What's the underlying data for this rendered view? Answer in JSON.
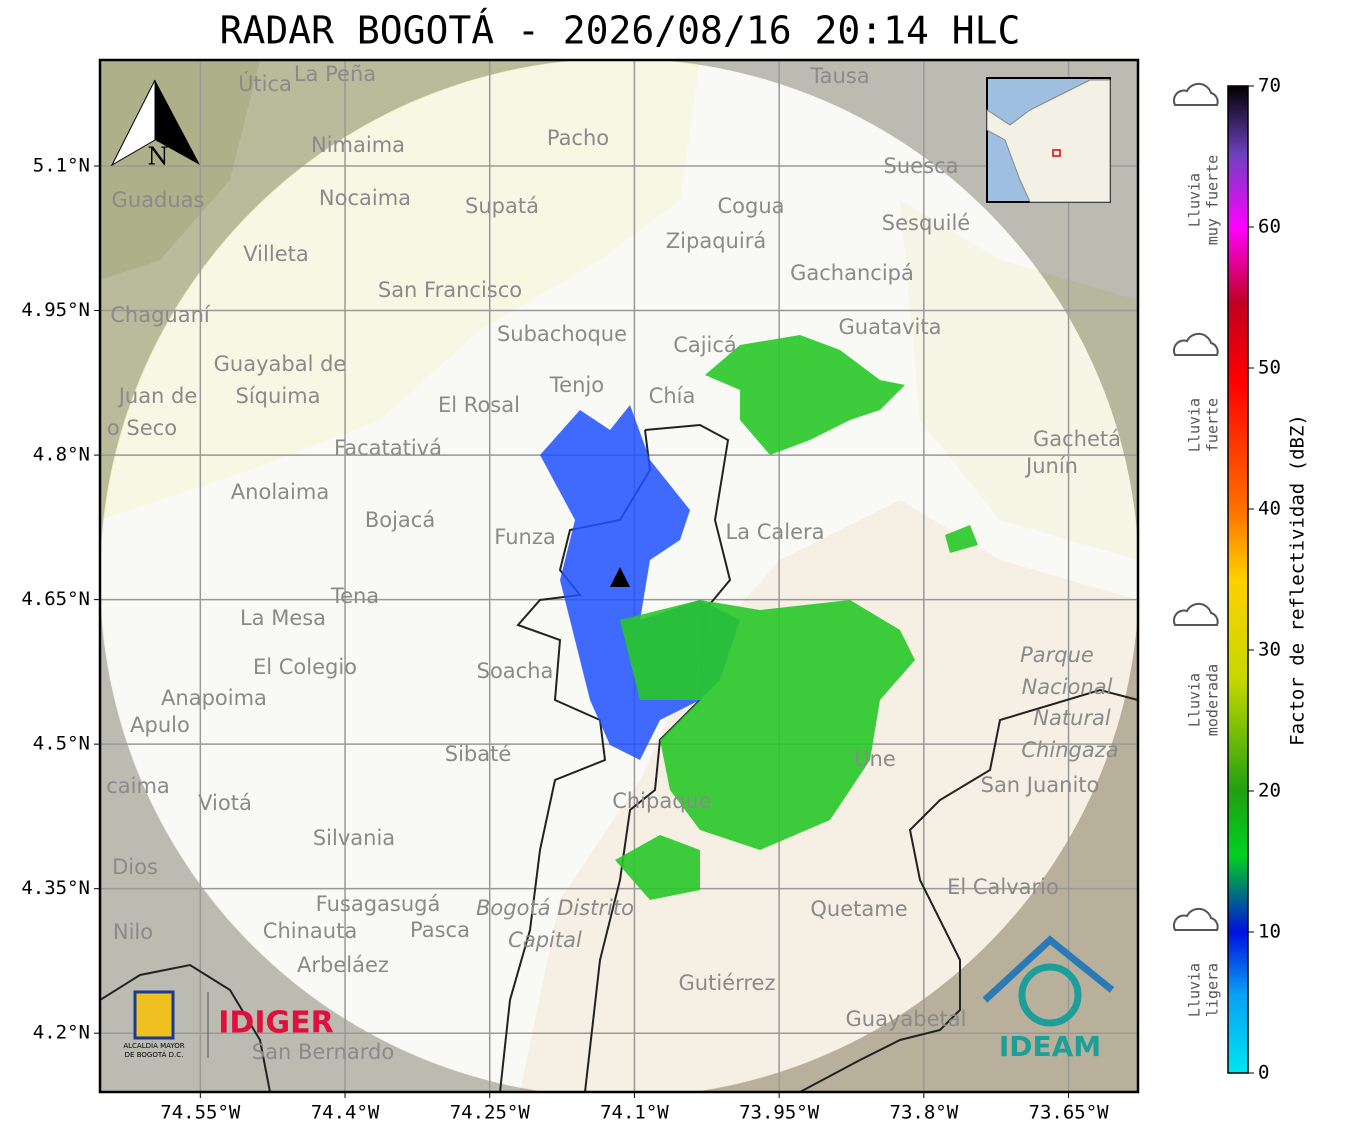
{
  "map": {
    "title": "RADAR BOGOTÁ - 2026/08/16 20:14 HLC",
    "xlim": [
      -74.654,
      -73.578
    ],
    "ylim": [
      4.139,
      5.21
    ],
    "lon_ticks": [
      {
        "value": -74.55,
        "label": "74.55°W"
      },
      {
        "value": -74.4,
        "label": "74.4°W"
      },
      {
        "value": -74.25,
        "label": "74.25°W"
      },
      {
        "value": -74.1,
        "label": "74.1°W"
      },
      {
        "value": -73.95,
        "label": "73.95°W"
      },
      {
        "value": -73.8,
        "label": "73.8°W"
      },
      {
        "value": -73.65,
        "label": "73.65°W"
      }
    ],
    "lat_ticks": [
      {
        "value": 4.2,
        "label": "4.2°N"
      },
      {
        "value": 4.35,
        "label": "4.35°N"
      },
      {
        "value": 4.5,
        "label": "4.5°N"
      },
      {
        "value": 4.65,
        "label": "4.65°N"
      },
      {
        "value": 4.8,
        "label": "4.8°N"
      },
      {
        "value": 4.95,
        "label": "4.95°N"
      },
      {
        "value": 5.1,
        "label": "5.1°N"
      }
    ],
    "north": "N",
    "places": [
      "Útica",
      "La Peña",
      "Tausa",
      "Pacho",
      "Nimaima",
      "Guaduas",
      "Nocaima",
      "Supatá",
      "Cogua",
      "Suesca",
      "Sesquilé",
      "Zipaquirá",
      "Villeta",
      "Gachancipá",
      "San Francisco",
      "Chaguaní",
      "Guatavita",
      "Subachoque",
      "Cajicá",
      "Guayabal de",
      "Síquima",
      "Juan de",
      "o Seco",
      "Tenjo",
      "Chía",
      "El Rosal",
      "Gachetá",
      "Junín",
      "Facatativá",
      "Anolaima",
      "Bojacá",
      "Funza",
      "La Calera",
      "Tena",
      "La Mesa",
      "El Colegio",
      "Soacha",
      "Anapoima",
      "Apulo",
      "Sibaté",
      "Parque",
      "Nacional",
      "Natural",
      "Chingaza",
      "San Juanito",
      "caima",
      "Viotá",
      "Chipaque",
      "Une",
      "Silvania",
      "Dios",
      "El Calvario",
      "Fusagasugá",
      "Bogotá Distrito",
      "Capital",
      "Quetame",
      "Nilo",
      "Chinauta",
      "Pasca",
      "Arbeláez",
      "Gutiérrez",
      "Guayabetal",
      "San Bernardo"
    ],
    "logos": {
      "idiger": "IDIGER",
      "alcaldia": [
        "ALCALDÍA MAYOR",
        "DE BOGOTÁ D.C."
      ],
      "ideam": "IDEAM"
    }
  },
  "colorbar": {
    "lim": [
      0,
      70
    ],
    "ticks": [
      0,
      10,
      20,
      30,
      40,
      50,
      60,
      70
    ],
    "label": "Factor de reflectividad (dBZ)",
    "categories": [
      [
        "Lluvia",
        "ligera"
      ],
      [
        "Lluvia",
        "moderada"
      ],
      [
        "Lluvia",
        "fuerte"
      ],
      [
        "Lluvia",
        "muy fuerte"
      ]
    ]
  }
}
